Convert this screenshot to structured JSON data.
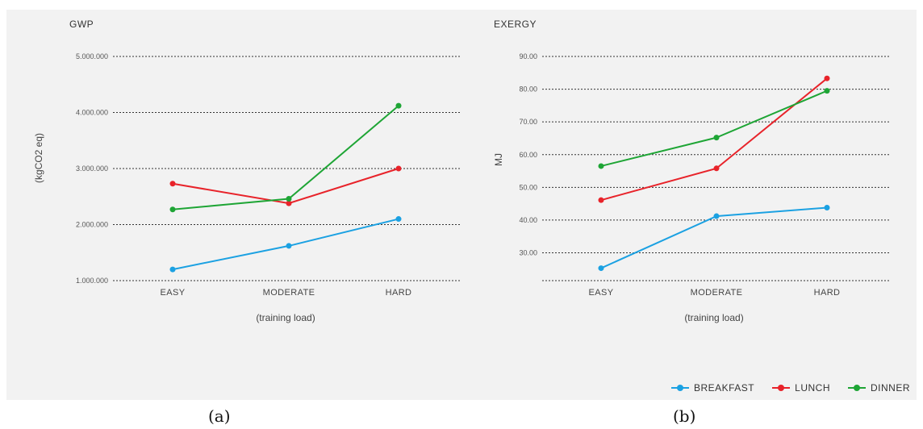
{
  "figure_labels": {
    "a": "(a)",
    "b": "(b)"
  },
  "colors": {
    "BREAKFAST": "#1ba1e2",
    "LUNCH": "#e8232a",
    "DINNER": "#1ea535"
  },
  "legend": [
    "BREAKFAST",
    "LUNCH",
    "DINNER"
  ],
  "chart_data": [
    {
      "type": "line",
      "title": "GWP",
      "ylabel": "(kgCO2 eq)",
      "xlabel": "(training load)",
      "categories": [
        "EASY",
        "MODERATE",
        "HARD"
      ],
      "yticks": [
        "1.000.000",
        "2.000.000",
        "3.000.000",
        "4.000.000",
        "5.000.000"
      ],
      "ylim": [
        1000000,
        5000000
      ],
      "grid": true,
      "series": [
        {
          "name": "BREAKFAST",
          "values": [
            1200000,
            1620000,
            2100000
          ]
        },
        {
          "name": "LUNCH",
          "values": [
            2730000,
            2380000,
            3000000
          ]
        },
        {
          "name": "DINNER",
          "values": [
            2270000,
            2460000,
            4120000
          ]
        }
      ]
    },
    {
      "type": "line",
      "title": "EXERGY",
      "ylabel": "MJ",
      "xlabel": "(training load)",
      "categories": [
        "EASY",
        "MODERATE",
        "HARD"
      ],
      "yticks": [
        "30.00",
        "40.00",
        "50.00",
        "60.00",
        "70.00",
        "80.00",
        "90.00"
      ],
      "ylim": [
        21.5,
        90
      ],
      "grid": true,
      "series": [
        {
          "name": "BREAKFAST",
          "values": [
            25.3,
            41.2,
            43.8
          ]
        },
        {
          "name": "LUNCH",
          "values": [
            46.1,
            55.8,
            83.3
          ]
        },
        {
          "name": "DINNER",
          "values": [
            56.5,
            65.2,
            79.5
          ]
        }
      ]
    }
  ]
}
